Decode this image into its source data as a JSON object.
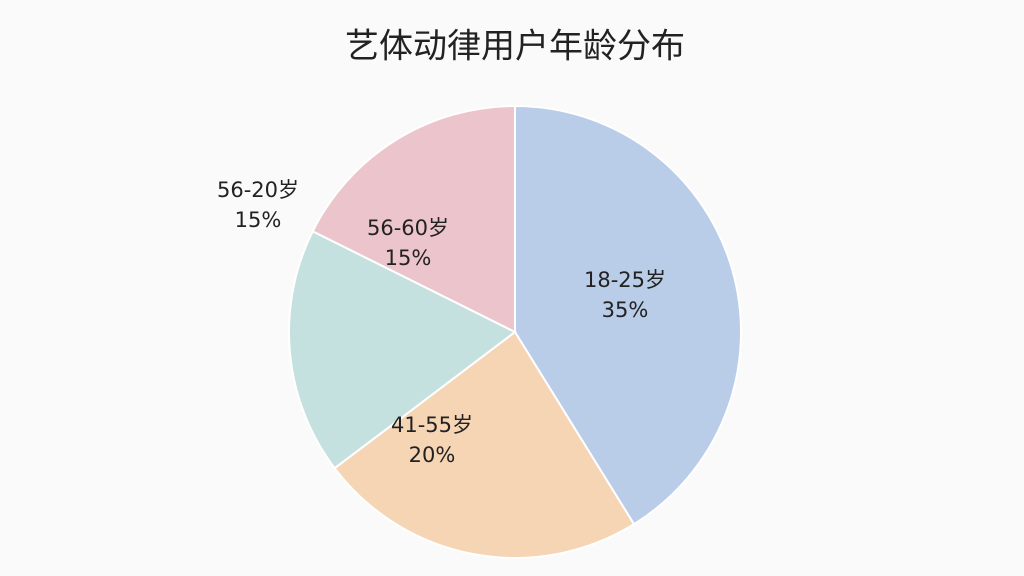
{
  "chart_data": {
    "type": "pie",
    "title": "艺体动律用户年龄分布",
    "categories": [
      "18-25岁",
      "41-55岁",
      "56-60岁",
      "56-20岁"
    ],
    "values": [
      35,
      20,
      15,
      15
    ],
    "value_labels": [
      "35%",
      "20%",
      "15%",
      "15%"
    ],
    "colors": [
      "#b9cce8",
      "#f6d5b5",
      "#c4e1df",
      "#ecc5cc"
    ]
  }
}
